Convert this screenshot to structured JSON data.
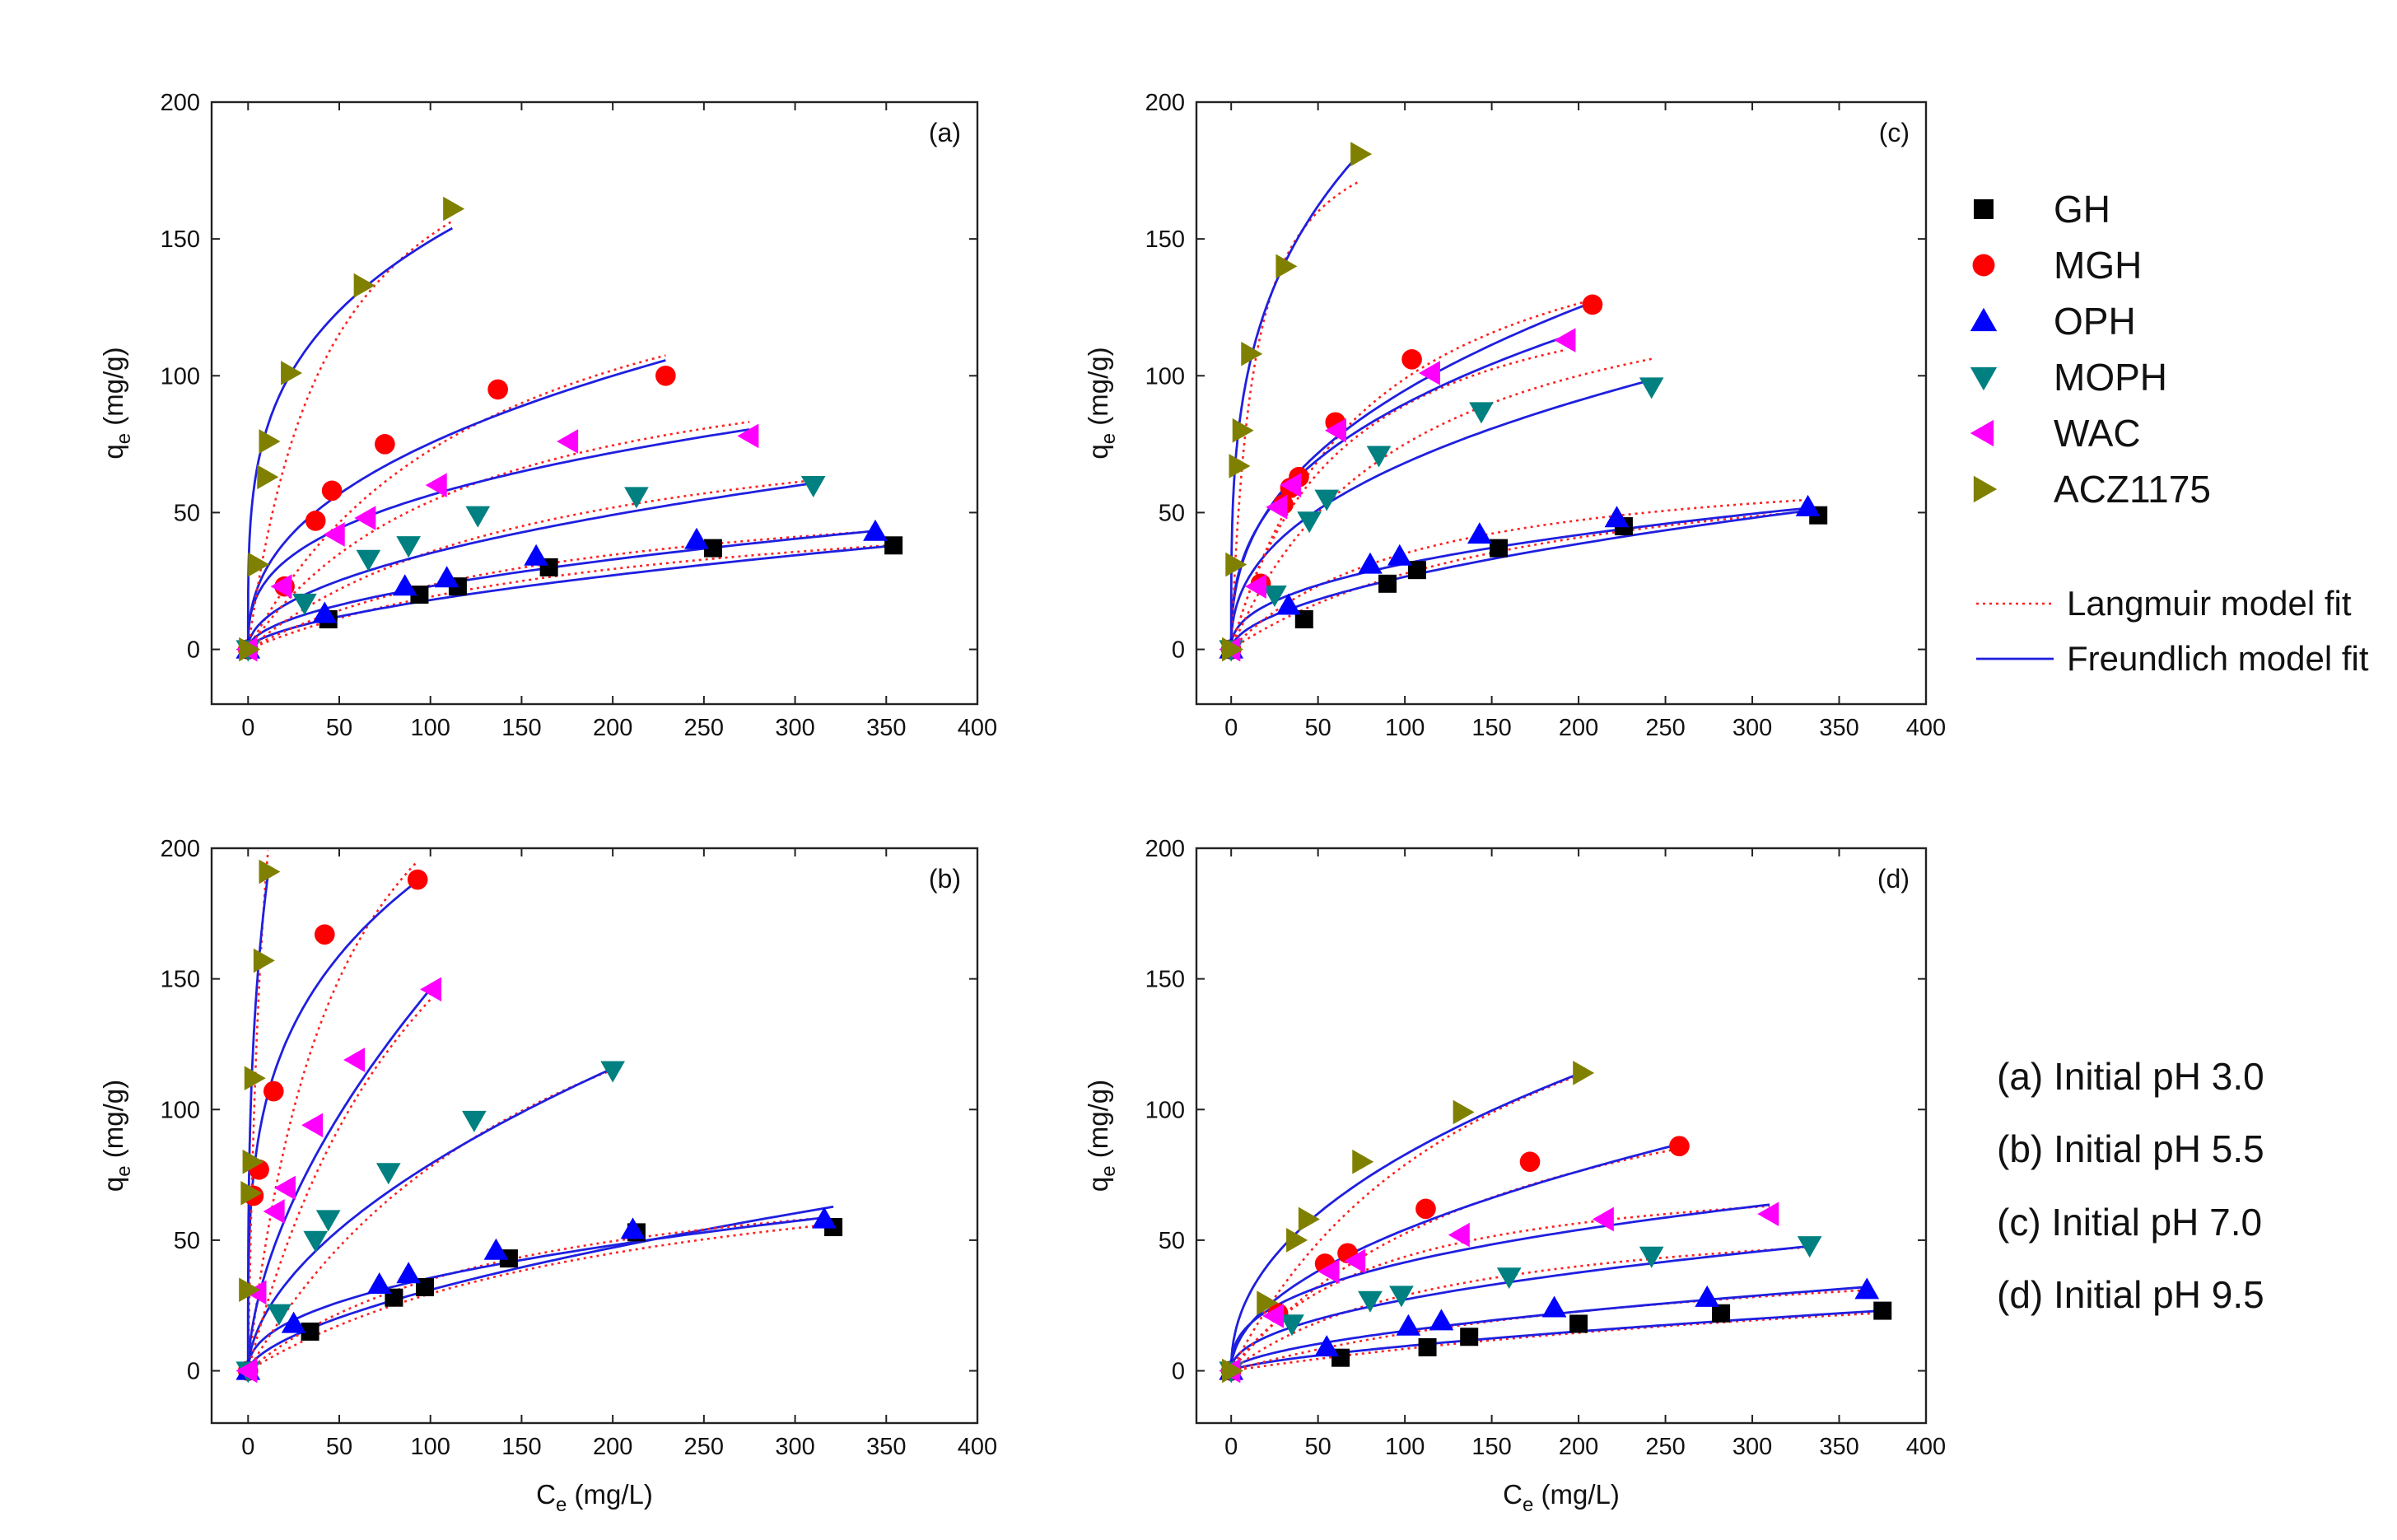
{
  "legend": {
    "series": [
      {
        "name": "GH",
        "marker": "square",
        "color": "#000000"
      },
      {
        "name": "MGH",
        "marker": "circle",
        "color": "#ff0000"
      },
      {
        "name": "OPH",
        "marker": "triangle-up",
        "color": "#0000ff"
      },
      {
        "name": "MOPH",
        "marker": "triangle-down",
        "color": "#008080"
      },
      {
        "name": "WAC",
        "marker": "triangle-left",
        "color": "#ff00ff"
      },
      {
        "name": "ACZ1175",
        "marker": "triangle-right",
        "color": "#808000"
      }
    ],
    "models": [
      {
        "name": "Langmuir model fit",
        "color": "#ff2020",
        "style": "dotted"
      },
      {
        "name": "Freundlich model fit",
        "color": "#1f1fe0",
        "style": "solid"
      }
    ]
  },
  "conditions": [
    "(a) Initial pH 3.0",
    "(b) Initial pH 5.5",
    "(c) Initial pH 7.0",
    "(d) Initial pH 9.5"
  ],
  "chart_data": [
    {
      "type": "scatter",
      "panel": "(a)",
      "xlabel_main": "C",
      "xlabel_sub": "e",
      "xlabel_unit": " (mg/L)",
      "ylabel_main": "q",
      "ylabel_sub": "e",
      "ylabel_unit": " (mg/g)",
      "show_xlabel": false,
      "xlim": [
        -20,
        400
      ],
      "ylim": [
        -20,
        200
      ],
      "xticks": [
        0,
        50,
        100,
        150,
        200,
        250,
        300,
        350,
        400
      ],
      "yticks": [
        0,
        50,
        100,
        150,
        200
      ],
      "series": [
        {
          "name": "GH",
          "x": [
            0,
            44,
            94,
            115,
            165,
            255,
            354
          ],
          "y": [
            0,
            11,
            20,
            23,
            30,
            37,
            38
          ],
          "freundlich": {
            "K": 1.2,
            "n": 1.7,
            "xmax": 354
          },
          "langmuir": {
            "qm": 62,
            "b": 0.0045,
            "xmax": 354
          }
        },
        {
          "name": "MGH",
          "x": [
            0,
            20,
            37,
            46,
            75,
            137,
            229
          ],
          "y": [
            0,
            23,
            47,
            58,
            75,
            95,
            100
          ],
          "freundlich": {
            "K": 11.5,
            "n": 2.45,
            "xmax": 229
          },
          "langmuir": {
            "qm": 170,
            "b": 0.0075,
            "xmax": 229
          }
        },
        {
          "name": "OPH",
          "x": [
            0,
            42,
            86,
            109,
            158,
            246,
            344
          ],
          "y": [
            0,
            13,
            23,
            26,
            34,
            40,
            43
          ],
          "freundlich": {
            "K": 2.2,
            "n": 1.96,
            "xmax": 344
          },
          "langmuir": {
            "qm": 66,
            "b": 0.0055,
            "xmax": 344
          }
        },
        {
          "name": "MOPH",
          "x": [
            0,
            31,
            66,
            88,
            126,
            213,
            310
          ],
          "y": [
            0,
            17,
            33,
            38,
            49,
            56,
            60
          ],
          "freundlich": {
            "K": 3.8,
            "n": 2.07,
            "xmax": 310
          },
          "langmuir": {
            "qm": 95,
            "b": 0.006,
            "xmax": 310
          }
        },
        {
          "name": "WAC",
          "x": [
            0,
            19,
            48,
            65,
            104,
            176,
            275
          ],
          "y": [
            0,
            23,
            42,
            48,
            60,
            76,
            78
          ],
          "freundlich": {
            "K": 11.2,
            "n": 2.85,
            "xmax": 275
          },
          "langmuir": {
            "qm": 120,
            "b": 0.0082,
            "xmax": 275
          }
        },
        {
          "name": "ACZ1175",
          "x": [
            0,
            5,
            10,
            11,
            23,
            63,
            112
          ],
          "y": [
            0,
            31,
            63,
            76,
            101,
            133,
            161
          ],
          "freundlich": {
            "K": 43,
            "n": 3.7,
            "xmax": 112
          },
          "langmuir": {
            "qm": 220,
            "b": 0.022,
            "xmax": 112
          }
        }
      ]
    },
    {
      "type": "scatter",
      "panel": "(b)",
      "xlabel_main": "C",
      "xlabel_sub": "e",
      "xlabel_unit": " (mg/L)",
      "ylabel_main": "q",
      "ylabel_sub": "e",
      "ylabel_unit": " (mg/g)",
      "show_xlabel": true,
      "xlim": [
        -20,
        400
      ],
      "ylim": [
        -20,
        200
      ],
      "xticks": [
        0,
        50,
        100,
        150,
        200,
        250,
        300,
        350,
        400
      ],
      "yticks": [
        0,
        50,
        100,
        150,
        200
      ],
      "series": [
        {
          "name": "GH",
          "x": [
            0,
            34,
            80,
            97,
            143,
            213,
            321
          ],
          "y": [
            0,
            15,
            28,
            32,
            43,
            53,
            55
          ],
          "freundlich": {
            "K": 1.9,
            "n": 1.65,
            "xmax": 321
          },
          "langmuir": {
            "qm": 95,
            "b": 0.0045,
            "xmax": 321
          }
        },
        {
          "name": "MGH",
          "x": [
            0,
            3,
            6,
            14,
            42,
            93
          ],
          "y": [
            0,
            67,
            77,
            107,
            167,
            188
          ],
          "freundlich": {
            "K": 56,
            "n": 3.75,
            "xmax": 93
          },
          "langmuir": {
            "qm": 300,
            "b": 0.02,
            "xmax": 93
          }
        },
        {
          "name": "OPH",
          "x": [
            0,
            25,
            72,
            88,
            136,
            211,
            316
          ],
          "y": [
            0,
            18,
            33,
            37,
            46,
            54,
            58
          ],
          "freundlich": {
            "K": 4.8,
            "n": 2.3,
            "xmax": 316
          },
          "langmuir": {
            "qm": 85,
            "b": 0.007,
            "xmax": 316
          }
        },
        {
          "name": "MOPH",
          "x": [
            0,
            17,
            37,
            44,
            77,
            124,
            200
          ],
          "y": [
            0,
            22,
            50,
            58,
            76,
            96,
            115
          ],
          "freundlich": {
            "K": 6.3,
            "n": 1.82,
            "xmax": 200
          },
          "langmuir": {
            "qm": 220,
            "b": 0.0055,
            "xmax": 200
          }
        },
        {
          "name": "WAC",
          "x": [
            0,
            5,
            15,
            21,
            36,
            59,
            101
          ],
          "y": [
            0,
            30,
            61,
            70,
            94,
            119,
            146
          ],
          "freundlich": {
            "K": 10.2,
            "n": 1.73,
            "xmax": 101
          },
          "langmuir": {
            "qm": 300,
            "b": 0.009,
            "xmax": 101
          }
        },
        {
          "name": "ACZ1175",
          "x": [
            0,
            1,
            2,
            3,
            8,
            11
          ],
          "y": [
            31,
            68,
            80,
            112,
            157,
            191
          ],
          "freundlich": {
            "K": 90,
            "n": 3.2,
            "xmax": 11
          },
          "langmuir": {
            "qm": 350,
            "b": 0.12,
            "xmax": 11
          }
        }
      ]
    },
    {
      "type": "scatter",
      "panel": "(c)",
      "xlabel_main": "C",
      "xlabel_sub": "e",
      "xlabel_unit": " (mg/L)",
      "ylabel_main": "q",
      "ylabel_sub": "e",
      "ylabel_unit": " (mg/g)",
      "show_xlabel": false,
      "xlim": [
        -20,
        400
      ],
      "ylim": [
        -20,
        200
      ],
      "xticks": [
        0,
        50,
        100,
        150,
        200,
        250,
        300,
        350,
        400
      ],
      "yticks": [
        0,
        50,
        100,
        150,
        200
      ],
      "series": [
        {
          "name": "GH",
          "x": [
            0,
            42,
            90,
            107,
            154,
            226,
            338
          ],
          "y": [
            0,
            11,
            24,
            29,
            37,
            45,
            49
          ],
          "freundlich": {
            "K": 2.2,
            "n": 1.85,
            "xmax": 338
          },
          "langmuir": {
            "qm": 78,
            "b": 0.0055,
            "xmax": 338
          }
        },
        {
          "name": "MGH",
          "x": [
            0,
            17,
            30,
            34,
            39,
            60,
            104,
            208
          ],
          "y": [
            0,
            24,
            53,
            59,
            63,
            83,
            106,
            126
          ],
          "freundlich": {
            "K": 15,
            "n": 2.5,
            "xmax": 208
          },
          "langmuir": {
            "qm": 175,
            "b": 0.013,
            "xmax": 208
          }
        },
        {
          "name": "OPH",
          "x": [
            0,
            33,
            80,
            97,
            143,
            222,
            332
          ],
          "y": [
            0,
            16,
            31,
            34,
            42,
            48,
            52
          ],
          "freundlich": {
            "K": 4.6,
            "n": 2.4,
            "xmax": 332
          },
          "langmuir": {
            "qm": 72,
            "b": 0.0095,
            "xmax": 332
          }
        },
        {
          "name": "MOPH",
          "x": [
            0,
            25,
            45,
            55,
            85,
            144,
            242
          ],
          "y": [
            0,
            20,
            47,
            55,
            71,
            87,
            96
          ],
          "freundlich": {
            "K": 10,
            "n": 2.4,
            "xmax": 242
          },
          "langmuir": {
            "qm": 150,
            "b": 0.01,
            "xmax": 242
          }
        },
        {
          "name": "WAC",
          "x": [
            0,
            15,
            27,
            35,
            61,
            115,
            193
          ],
          "y": [
            0,
            23,
            52,
            60,
            80,
            101,
            113
          ],
          "freundlich": {
            "K": 16.3,
            "n": 2.7,
            "xmax": 193
          },
          "langmuir": {
            "qm": 145,
            "b": 0.016,
            "xmax": 193
          }
        },
        {
          "name": "ACZ1175",
          "x": [
            0,
            2,
            4,
            6,
            11,
            31,
            74
          ],
          "y": [
            0,
            31,
            67,
            80,
            108,
            140,
            181
          ],
          "freundlich": {
            "K": 53,
            "n": 3.5,
            "xmax": 74
          },
          "langmuir": {
            "qm": 200,
            "b": 0.08,
            "xmax": 74
          }
        }
      ]
    },
    {
      "type": "scatter",
      "panel": "(d)",
      "xlabel_main": "C",
      "xlabel_sub": "e",
      "xlabel_unit": " (mg/L)",
      "ylabel_main": "q",
      "ylabel_sub": "e",
      "ylabel_unit": " (mg/g)",
      "show_xlabel": true,
      "xlim": [
        -20,
        400
      ],
      "ylim": [
        -20,
        200
      ],
      "xticks": [
        0,
        50,
        100,
        150,
        200,
        250,
        300,
        350,
        400
      ],
      "yticks": [
        0,
        50,
        100,
        150,
        200
      ],
      "series": [
        {
          "name": "GH",
          "x": [
            0,
            63,
            113,
            137,
            200,
            282,
            375
          ],
          "y": [
            0,
            5,
            9,
            13,
            18,
            22,
            23
          ],
          "freundlich": {
            "K": 0.42,
            "n": 1.48,
            "xmax": 375
          },
          "langmuir": {
            "qm": 55,
            "b": 0.0018,
            "xmax": 375
          }
        },
        {
          "name": "MGH",
          "x": [
            0,
            27,
            54,
            67,
            112,
            172,
            258
          ],
          "y": [
            0,
            22,
            41,
            45,
            62,
            80,
            86
          ],
          "freundlich": {
            "K": 5.4,
            "n": 2.0,
            "xmax": 258
          },
          "langmuir": {
            "qm": 140,
            "b": 0.006,
            "xmax": 258
          }
        },
        {
          "name": "OPH",
          "x": [
            0,
            55,
            102,
            121,
            186,
            274,
            366
          ],
          "y": [
            0,
            9,
            17,
            19,
            24,
            28,
            31
          ],
          "freundlich": {
            "K": 1.1,
            "n": 1.75,
            "xmax": 366
          },
          "langmuir": {
            "qm": 55,
            "b": 0.0035,
            "xmax": 366
          }
        },
        {
          "name": "MOPH",
          "x": [
            0,
            35,
            80,
            98,
            160,
            242,
            333
          ],
          "y": [
            0,
            18,
            27,
            29,
            36,
            44,
            48
          ],
          "freundlich": {
            "K": 3.2,
            "n": 2.15,
            "xmax": 333
          },
          "langmuir": {
            "qm": 65,
            "b": 0.008,
            "xmax": 333
          }
        },
        {
          "name": "WAC",
          "x": [
            0,
            25,
            57,
            72,
            132,
            215,
            310
          ],
          "y": [
            0,
            21,
            38,
            42,
            52,
            58,
            60
          ],
          "freundlich": {
            "K": 7.3,
            "n": 2.65,
            "xmax": 310
          },
          "langmuir": {
            "qm": 80,
            "b": 0.012,
            "xmax": 310
          }
        },
        {
          "name": "ACZ1175",
          "x": [
            0,
            20,
            37,
            44,
            75,
            133,
            202
          ],
          "y": [
            0,
            26,
            50,
            58,
            80,
            99,
            114
          ],
          "freundlich": {
            "K": 10,
            "n": 2.18,
            "xmax": 202
          },
          "langmuir": {
            "qm": 200,
            "b": 0.0065,
            "xmax": 202
          }
        }
      ]
    }
  ]
}
